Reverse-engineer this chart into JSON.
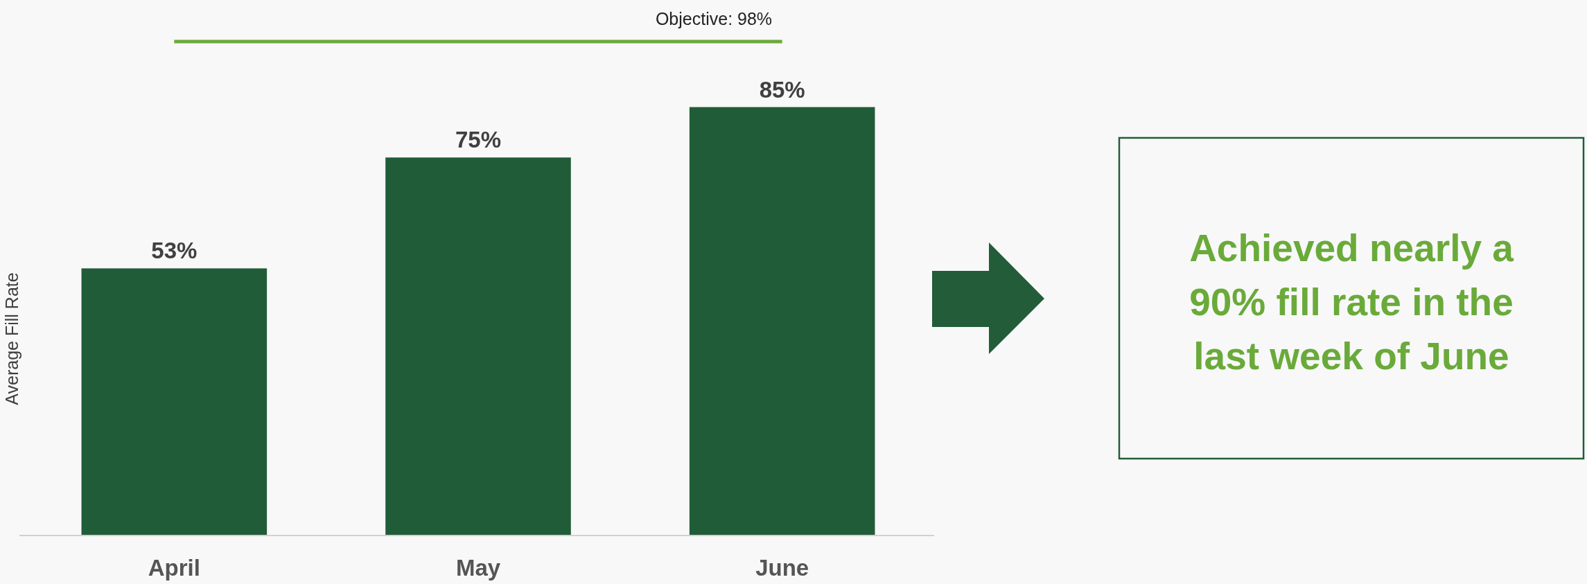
{
  "chart_data": {
    "type": "bar",
    "ylabel": "Average Fill Rate",
    "categories": [
      "April",
      "May",
      "June"
    ],
    "values": [
      53,
      75,
      85
    ],
    "color": "#215c38",
    "data_labels": true,
    "value_labels": [
      "53%",
      "75%",
      "85%"
    ],
    "ref_lines": [
      {
        "axis": "y",
        "value": 98,
        "label": "Objective: 98%",
        "color": "#6aaa3a"
      }
    ],
    "annotations": [
      "Achieved nearly a 90% fill rate in the last week of June"
    ]
  }
}
